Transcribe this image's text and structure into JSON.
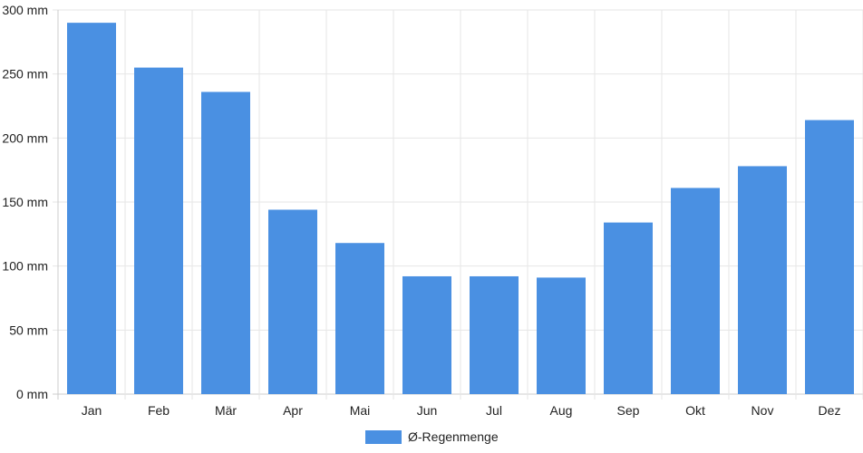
{
  "chart_data": {
    "type": "bar",
    "categories": [
      "Jan",
      "Feb",
      "Mär",
      "Apr",
      "Mai",
      "Jun",
      "Jul",
      "Aug",
      "Sep",
      "Okt",
      "Nov",
      "Dez"
    ],
    "series": [
      {
        "name": "Ø-Regenmenge",
        "color": "#4a90e2",
        "values": [
          290,
          255,
          236,
          144,
          118,
          92,
          92,
          91,
          134,
          161,
          178,
          214
        ]
      }
    ],
    "y_ticks": [
      "0 mm",
      "50 mm",
      "100 mm",
      "150 mm",
      "200 mm",
      "250 mm",
      "300 mm"
    ],
    "ylim": [
      0,
      300
    ],
    "unit": "mm",
    "grid": true,
    "legend_position": "bottom-center",
    "title": "",
    "xlabel": "",
    "ylabel": ""
  }
}
